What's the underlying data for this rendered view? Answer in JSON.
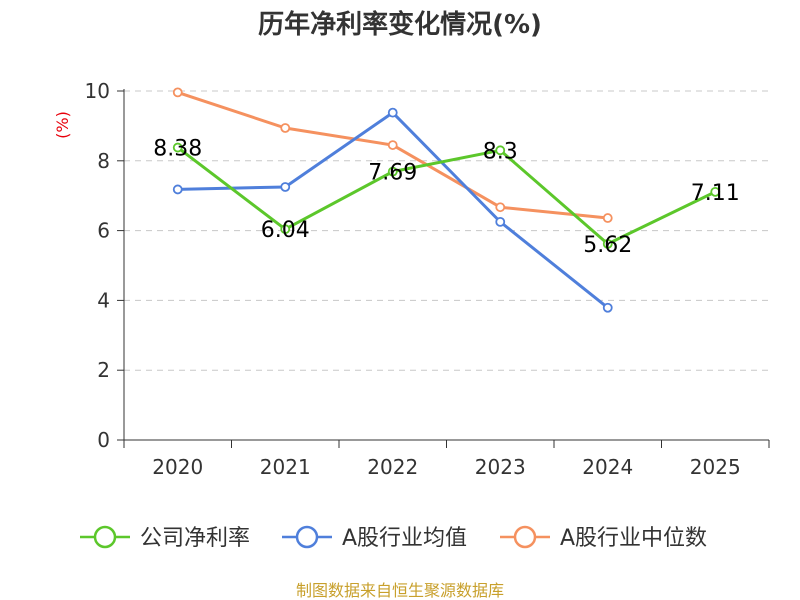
{
  "chart_data": {
    "type": "line",
    "title": "历年净利率变化情况(%)",
    "ylabel": "(%)",
    "xlabel": "",
    "ylim": [
      0,
      10
    ],
    "yticks": [
      0,
      2,
      4,
      6,
      8,
      10
    ],
    "grid": true,
    "legend_position": "bottom",
    "categories": [
      "2020",
      "2021",
      "2022",
      "2023",
      "2024",
      "2025"
    ],
    "series": [
      {
        "name": "公司净利率",
        "color": "#5cc72b",
        "values": [
          8.38,
          6.04,
          7.69,
          8.3,
          5.62,
          7.11
        ],
        "labels": [
          "8.38",
          "6.04",
          "7.69",
          "8.3",
          "5.62",
          "7.11"
        ]
      },
      {
        "name": "A股行业均值",
        "color": "#4f7fdb",
        "values": [
          7.18,
          7.25,
          9.38,
          6.25,
          3.79,
          null
        ]
      },
      {
        "name": "A股行业中位数",
        "color": "#f5915f",
        "values": [
          9.96,
          8.94,
          8.45,
          6.67,
          6.36,
          null
        ]
      }
    ],
    "source": "制图数据来自恒生聚源数据库"
  }
}
